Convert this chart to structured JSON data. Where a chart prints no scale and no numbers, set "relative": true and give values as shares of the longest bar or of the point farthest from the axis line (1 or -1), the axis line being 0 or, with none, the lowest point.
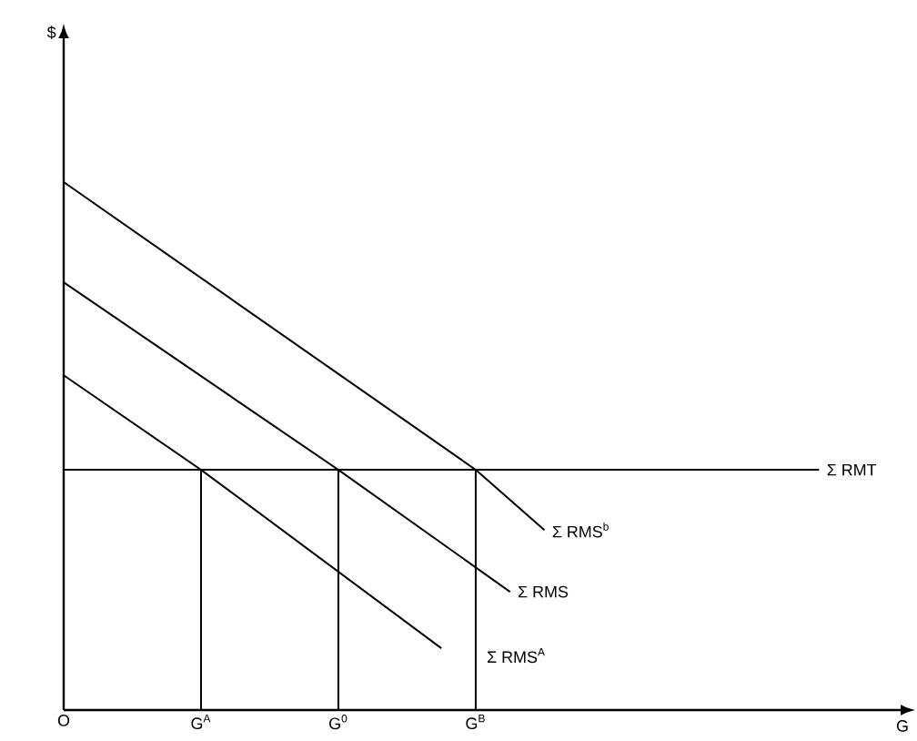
{
  "chart_data": {
    "type": "line",
    "relative": true,
    "xlabel": "G",
    "annotations": [
      "$"
    ],
    "marker": "none",
    "line_style": "solid",
    "categories": [
      "O",
      null,
      null,
      null,
      "G$^{A}$",
      null,
      null,
      null,
      "G$^{0}$",
      null,
      null,
      null,
      "G$^{B}$",
      null,
      null,
      null,
      null,
      null,
      null,
      null,
      null,
      null,
      null,
      null,
      null
    ],
    "series": [
      {
        "name": "Σ RMS$^{b}$",
        "color": "#000000",
        "values": [
          1,
          null,
          null,
          null,
          null,
          null,
          null,
          null,
          null,
          null,
          null,
          null,
          0.455,
          null,
          0.341,
          null,
          null,
          null,
          null,
          null,
          null,
          null,
          null,
          null,
          null
        ]
      },
      {
        "name": "Σ RMS",
        "color": "#000000",
        "values": [
          0.81,
          null,
          null,
          null,
          null,
          null,
          null,
          null,
          0.455,
          null,
          null,
          null,
          null,
          0.224,
          null,
          null,
          null,
          null,
          null,
          null,
          null,
          null,
          null,
          null,
          null
        ]
      },
      {
        "name": "Σ RMS$^{A}$",
        "color": "#000000",
        "values": [
          0.634,
          null,
          null,
          null,
          0.455,
          null,
          null,
          null,
          null,
          null,
          null,
          0.117,
          null,
          null,
          null,
          null,
          null,
          null,
          null,
          null,
          null,
          null,
          null,
          null,
          null
        ]
      },
      {
        "name": "Σ RMT",
        "color": "#000000",
        "values": [
          0.455,
          null,
          null,
          null,
          null,
          null,
          null,
          null,
          null,
          null,
          null,
          null,
          null,
          null,
          null,
          null,
          null,
          null,
          null,
          null,
          null,
          null,
          0.455,
          null,
          null
        ]
      },
      {
        "color": "#000000",
        "x": [
          "G$^{A}$",
          "G$^{A}$"
        ],
        "values": [
          0,
          0.455
        ]
      },
      {
        "color": "#000000",
        "x": [
          "G$^{0}$",
          "G$^{0}$"
        ],
        "values": [
          0,
          0.455
        ]
      },
      {
        "color": "#000000",
        "x": [
          "G$^{B}$",
          "G$^{B}$"
        ],
        "values": [
          0,
          0.455
        ]
      }
    ]
  }
}
